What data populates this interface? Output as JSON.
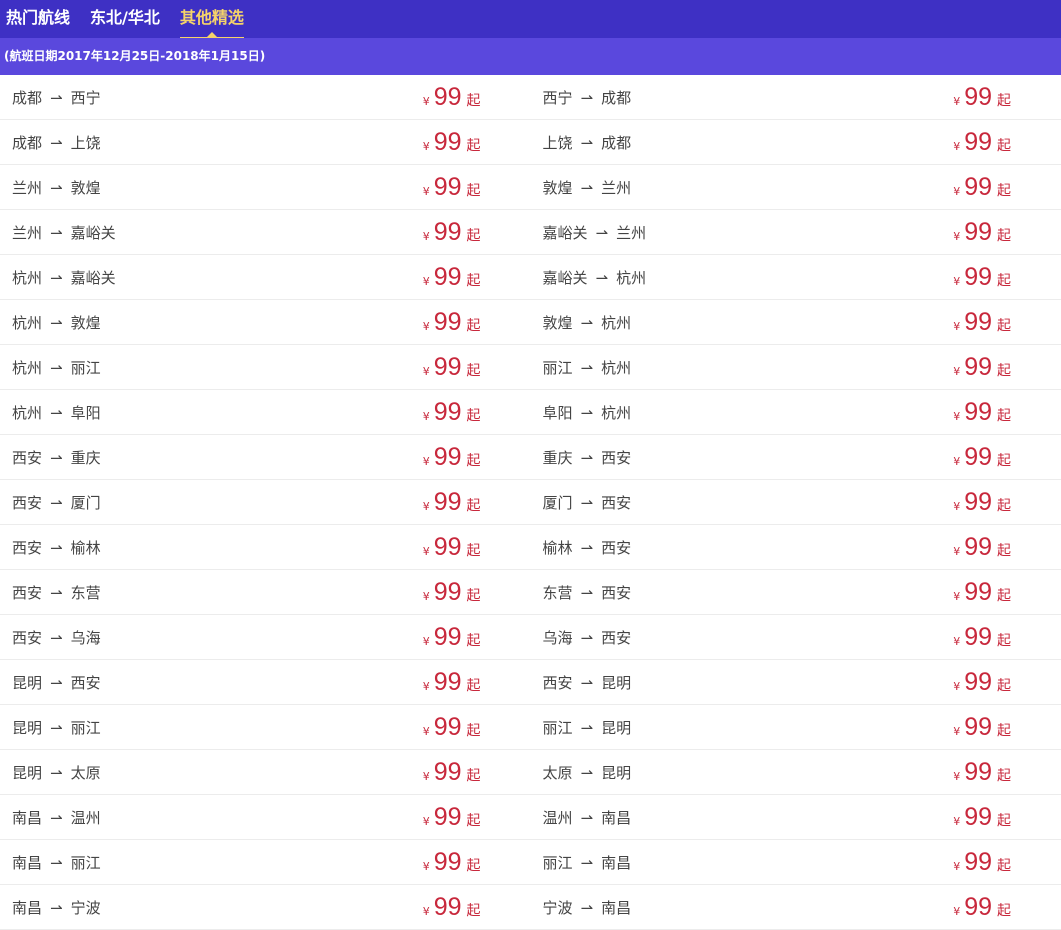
{
  "tabs": [
    {
      "label": "热门航线",
      "active": false
    },
    {
      "label": "东北/华北",
      "active": false
    },
    {
      "label": "其他精选",
      "active": true
    }
  ],
  "date_range": "(航班日期2017年12月25日-2018年1月15日)",
  "arrow": "⇀",
  "currency": "¥",
  "price": "99",
  "price_suffix": "起",
  "routes": [
    [
      [
        "成都",
        "西宁"
      ],
      [
        "西宁",
        "成都"
      ]
    ],
    [
      [
        "成都",
        "上饶"
      ],
      [
        "上饶",
        "成都"
      ]
    ],
    [
      [
        "兰州",
        "敦煌"
      ],
      [
        "敦煌",
        "兰州"
      ]
    ],
    [
      [
        "兰州",
        "嘉峪关"
      ],
      [
        "嘉峪关",
        "兰州"
      ]
    ],
    [
      [
        "杭州",
        "嘉峪关"
      ],
      [
        "嘉峪关",
        "杭州"
      ]
    ],
    [
      [
        "杭州",
        "敦煌"
      ],
      [
        "敦煌",
        "杭州"
      ]
    ],
    [
      [
        "杭州",
        "丽江"
      ],
      [
        "丽江",
        "杭州"
      ]
    ],
    [
      [
        "杭州",
        "阜阳"
      ],
      [
        "阜阳",
        "杭州"
      ]
    ],
    [
      [
        "西安",
        "重庆"
      ],
      [
        "重庆",
        "西安"
      ]
    ],
    [
      [
        "西安",
        "厦门"
      ],
      [
        "厦门",
        "西安"
      ]
    ],
    [
      [
        "西安",
        "榆林"
      ],
      [
        "榆林",
        "西安"
      ]
    ],
    [
      [
        "西安",
        "东营"
      ],
      [
        "东营",
        "西安"
      ]
    ],
    [
      [
        "西安",
        "乌海"
      ],
      [
        "乌海",
        "西安"
      ]
    ],
    [
      [
        "昆明",
        "西安"
      ],
      [
        "西安",
        "昆明"
      ]
    ],
    [
      [
        "昆明",
        "丽江"
      ],
      [
        "丽江",
        "昆明"
      ]
    ],
    [
      [
        "昆明",
        "太原"
      ],
      [
        "太原",
        "昆明"
      ]
    ],
    [
      [
        "南昌",
        "温州"
      ],
      [
        "温州",
        "南昌"
      ]
    ],
    [
      [
        "南昌",
        "丽江"
      ],
      [
        "丽江",
        "南昌"
      ]
    ],
    [
      [
        "南昌",
        "宁波"
      ],
      [
        "宁波",
        "南昌"
      ]
    ]
  ]
}
